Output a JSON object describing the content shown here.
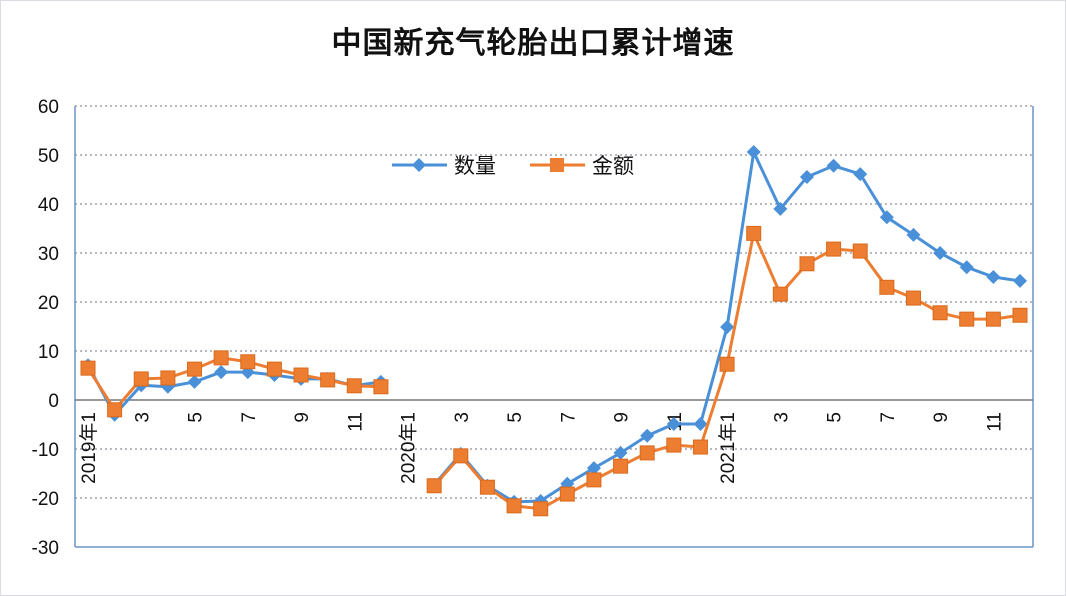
{
  "chart_data": {
    "type": "line",
    "title": "中国新充气轮胎出口累计增速",
    "xlabel": "",
    "ylabel": "",
    "ylim": [
      -30,
      60
    ],
    "yticks": [
      -30,
      -20,
      -10,
      0,
      10,
      20,
      30,
      40,
      50,
      60
    ],
    "grid": true,
    "legend": "top-center",
    "categories": [
      "2019年1",
      "2",
      "3",
      "4",
      "5",
      "6",
      "7",
      "8",
      "9",
      "10",
      "11",
      "12",
      "2020年1",
      "2",
      "3",
      "4",
      "5",
      "6",
      "7",
      "8",
      "9",
      "10",
      "11",
      "12",
      "2021年1",
      "2",
      "3",
      "4",
      "5",
      "6",
      "7",
      "8",
      "9",
      "10",
      "11",
      "12"
    ],
    "tick_labels": [
      "2019年1",
      "",
      "3",
      "",
      "5",
      "",
      "7",
      "",
      "9",
      "",
      "11",
      "",
      "2020年1",
      "",
      "3",
      "",
      "5",
      "",
      "7",
      "",
      "9",
      "",
      "11",
      "",
      "2021年1",
      "",
      "3",
      "",
      "5",
      "",
      "7",
      "",
      "9",
      "",
      "11",
      ""
    ],
    "series": [
      {
        "name": "数量",
        "color": "#4a90d9",
        "marker": "diamond",
        "values": [
          7.1,
          -3.0,
          3.0,
          2.7,
          3.7,
          5.7,
          5.7,
          5.1,
          4.3,
          4.3,
          2.9,
          3.7,
          null,
          -17.3,
          -11.0,
          -17.5,
          -20.8,
          -20.6,
          -17.1,
          -13.9,
          -10.8,
          -7.3,
          -4.9,
          -4.9,
          14.9,
          50.6,
          39.0,
          45.5,
          47.8,
          46.1,
          37.3,
          33.7,
          30.0,
          27.1,
          25.1,
          24.3
        ]
      },
      {
        "name": "金额",
        "color": "#ed7d31",
        "marker": "square",
        "values": [
          6.5,
          -2.0,
          4.3,
          4.5,
          6.3,
          8.6,
          7.8,
          6.3,
          5.1,
          4.1,
          2.9,
          2.7,
          null,
          -17.5,
          -11.4,
          -17.8,
          -21.6,
          -22.2,
          -19.2,
          -16.3,
          -13.5,
          -10.8,
          -9.2,
          -9.6,
          7.3,
          34.0,
          21.6,
          27.8,
          30.8,
          30.4,
          23.0,
          20.8,
          17.8,
          16.5,
          16.5,
          17.3
        ]
      }
    ]
  }
}
